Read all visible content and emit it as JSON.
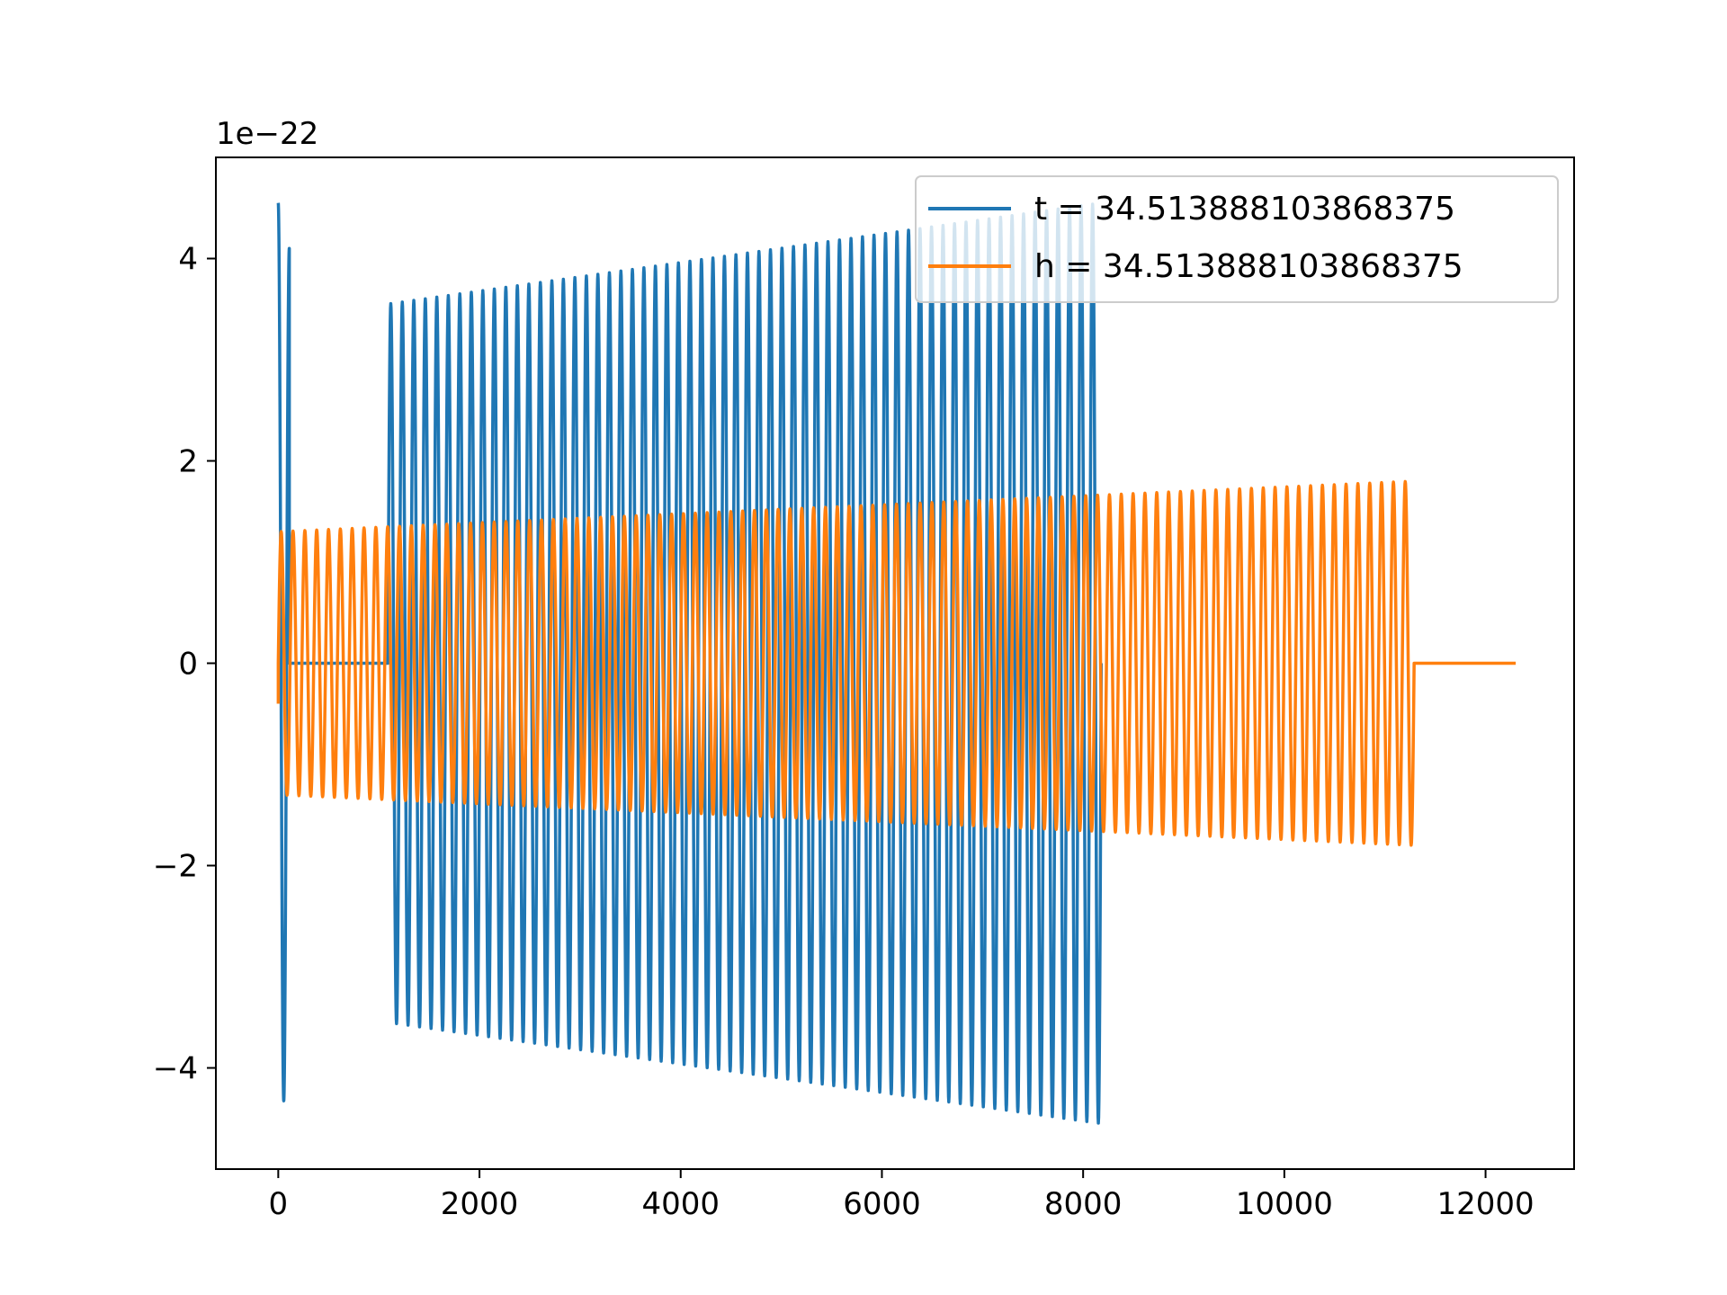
{
  "chart_data": {
    "type": "line",
    "title": "",
    "xlabel": "",
    "ylabel": "",
    "offset_label": "1e−22",
    "xlim": [
      -620,
      12880
    ],
    "ylim": [
      -5.0,
      5.0
    ],
    "xticks": [
      0,
      2000,
      4000,
      6000,
      8000,
      10000,
      12000
    ],
    "xtick_labels": [
      "0",
      "2000",
      "4000",
      "6000",
      "8000",
      "10000",
      "12000"
    ],
    "yticks": [
      -4,
      -2,
      0,
      2,
      4
    ],
    "ytick_labels": [
      "−4",
      "−2",
      "0",
      "2",
      "4"
    ],
    "grid": false,
    "legend_position": "top-right",
    "series": [
      {
        "name": "t = 34.513888103868375",
        "color": "#1f77b4",
        "segments": [
          {
            "shape": "burst",
            "x_start": 0,
            "x_end": 110,
            "cycles": 1.0,
            "amp_start": 4.55,
            "amp_end": 4.1
          },
          {
            "shape": "flat",
            "x_start": 110,
            "x_end": 1090,
            "value": 0
          },
          {
            "shape": "oscillation",
            "x_start": 1090,
            "x_end": 8180,
            "cycles": 62,
            "amp_start": 3.55,
            "amp_end": 4.55
          }
        ]
      },
      {
        "name": "h = 34.513888103868375",
        "color": "#ff7f0e",
        "segments": [
          {
            "shape": "start",
            "x_start": 0,
            "x_end": 0,
            "value": -0.4
          },
          {
            "shape": "oscillation",
            "x_start": 0,
            "x_end": 11290,
            "cycles": 96,
            "amp_start": 1.3,
            "amp_end": 1.8
          },
          {
            "shape": "flat",
            "x_start": 11290,
            "x_end": 12300,
            "value": 0
          }
        ]
      }
    ]
  }
}
